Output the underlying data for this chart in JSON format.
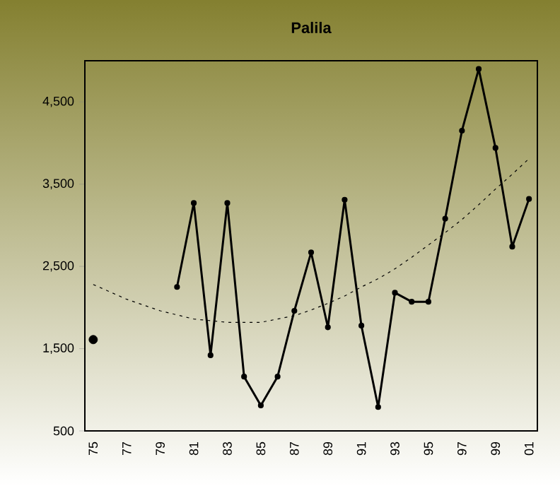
{
  "chart_data": {
    "type": "line",
    "title": "Palila",
    "categories": [
      "75",
      null,
      "77",
      null,
      "79",
      null,
      "81",
      null,
      "83",
      null,
      "85",
      null,
      "87",
      null,
      "89",
      null,
      "91",
      null,
      "93",
      null,
      "95",
      null,
      "97",
      null,
      "99",
      null,
      "01"
    ],
    "series": [
      {
        "color": "#000000",
        "marker": "circle",
        "line_style": "solid",
        "values": [
          1610,
          null,
          null,
          null,
          null,
          2250,
          3270,
          1420,
          3270,
          1160,
          810,
          1160,
          1960,
          2670,
          1760,
          3310,
          1780,
          790,
          2180,
          2070,
          2070,
          3080,
          4150,
          4900,
          3940,
          2740,
          3320
        ]
      },
      {
        "color": "#000000",
        "marker": "none",
        "line_style": "dotted",
        "values": [
          2280,
          2190,
          2100,
          2030,
          1960,
          1910,
          1860,
          1840,
          1820,
          1820,
          1820,
          1860,
          1900,
          1970,
          2050,
          2140,
          2250,
          2350,
          2470,
          2610,
          2760,
          2910,
          3070,
          3250,
          3440,
          3620,
          3810
        ]
      }
    ],
    "ylim": [
      500,
      5000
    ],
    "yticks": [
      {
        "value": 500,
        "label": "500"
      },
      {
        "value": 1500,
        "label": "1,500"
      },
      {
        "value": 2500,
        "label": "2,500"
      },
      {
        "value": 3500,
        "label": "3,500"
      },
      {
        "value": 4500,
        "label": "4,500"
      }
    ],
    "grid": false
  }
}
